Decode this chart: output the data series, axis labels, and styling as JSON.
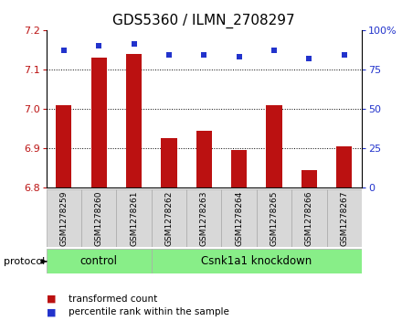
{
  "title": "GDS5360 / ILMN_2708297",
  "samples": [
    "GSM1278259",
    "GSM1278260",
    "GSM1278261",
    "GSM1278262",
    "GSM1278263",
    "GSM1278264",
    "GSM1278265",
    "GSM1278266",
    "GSM1278267"
  ],
  "bar_values": [
    7.01,
    7.13,
    7.14,
    6.925,
    6.945,
    6.895,
    7.01,
    6.845,
    6.905
  ],
  "percentile_values": [
    87,
    90,
    91,
    84,
    84,
    83,
    87,
    82,
    84
  ],
  "ylim_left": [
    6.8,
    7.2
  ],
  "ylim_right": [
    0,
    100
  ],
  "yticks_left": [
    6.8,
    6.9,
    7.0,
    7.1,
    7.2
  ],
  "yticks_right": [
    0,
    25,
    50,
    75,
    100
  ],
  "bar_color": "#bb1111",
  "scatter_color": "#2233cc",
  "control_samples": 3,
  "control_label": "control",
  "knockdown_label": "Csnk1a1 knockdown",
  "protocol_label": "protocol",
  "legend_bar_label": "transformed count",
  "legend_scatter_label": "percentile rank within the sample",
  "bg_color": "#d8d8d8",
  "green_color": "#88ee88",
  "plot_bg": "#ffffff",
  "title_fontsize": 11
}
